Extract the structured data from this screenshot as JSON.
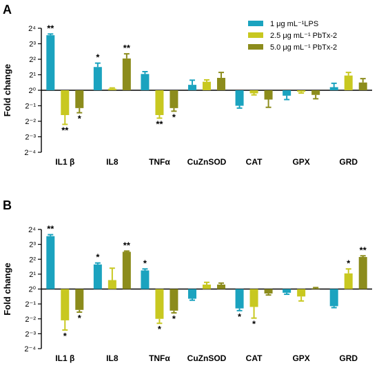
{
  "legend": {
    "items": [
      {
        "label": "1 μg mL⁻¹LPS",
        "color": "#1ba3bf"
      },
      {
        "label": "2.5 μg mL⁻¹ PbTx-2",
        "color": "#c8c820"
      },
      {
        "label": "5.0 μg mL⁻¹ PbTx-2",
        "color": "#8c8c1c"
      }
    ]
  },
  "chart_data": [
    {
      "panel": "A",
      "type": "bar",
      "ylabel": "Fold change",
      "y_scale": "log2",
      "y_ticks": [
        "2⁴",
        "2³",
        "2²",
        "2¹",
        "2⁰",
        "2⁻¹",
        "2⁻²",
        "2⁻³",
        "2⁻⁴"
      ],
      "ylim_log2": [
        -4,
        4
      ],
      "categories": [
        "IL1 β",
        "IL8",
        "TNFα",
        "CuZnSOD",
        "CAT",
        "GPX",
        "GRD"
      ],
      "series": [
        {
          "name": "1 μg mL⁻¹LPS",
          "log2_values": [
            3.55,
            1.5,
            1.05,
            0.35,
            -1.0,
            -0.35,
            0.2
          ],
          "log2_err": [
            0.08,
            0.25,
            0.15,
            0.3,
            0.15,
            0.25,
            0.25
          ],
          "sig": [
            "**",
            "*",
            "",
            "",
            "",
            "",
            ""
          ]
        },
        {
          "name": "2.5 μg mL⁻¹ PbTx-2",
          "log2_values": [
            -1.6,
            0.1,
            -1.6,
            0.55,
            -0.2,
            -0.1,
            0.95
          ],
          "log2_err": [
            0.6,
            0.05,
            0.2,
            0.12,
            0.1,
            0.08,
            0.2
          ],
          "sig": [
            "**",
            "",
            "**",
            "",
            "",
            "",
            ""
          ]
        },
        {
          "name": "5.0 μg mL⁻¹ PbTx-2",
          "log2_values": [
            -1.15,
            2.05,
            -1.15,
            0.8,
            -0.6,
            -0.3,
            0.5
          ],
          "log2_err": [
            0.3,
            0.3,
            0.2,
            0.35,
            0.5,
            0.25,
            0.25
          ],
          "sig": [
            "*",
            "**",
            "*",
            "",
            "",
            "",
            ""
          ]
        }
      ]
    },
    {
      "panel": "B",
      "type": "bar",
      "ylabel": "Fold change",
      "y_scale": "log2",
      "y_ticks": [
        "2⁴",
        "2³",
        "2²",
        "2¹",
        "2⁰",
        "2⁻¹",
        "2⁻²",
        "2⁻³",
        "2⁻⁴"
      ],
      "ylim_log2": [
        -4,
        4
      ],
      "categories": [
        "IL1 β",
        "IL8",
        "TNFα",
        "CuZnSOD",
        "CAT",
        "GPX",
        "GRD"
      ],
      "series": [
        {
          "name": "1 μg mL⁻¹LPS",
          "log2_values": [
            3.55,
            1.65,
            1.25,
            -0.65,
            -1.3,
            -0.25,
            -1.15
          ],
          "log2_err": [
            0.1,
            0.1,
            0.1,
            0.1,
            0.15,
            0.1,
            0.1
          ],
          "sig": [
            "**",
            "*",
            "*",
            "",
            "*",
            "",
            ""
          ]
        },
        {
          "name": "2.5 μg mL⁻¹ PbTx-2",
          "log2_values": [
            -2.1,
            0.6,
            -2.0,
            0.3,
            -1.2,
            -0.5,
            1.05
          ],
          "log2_err": [
            0.65,
            0.8,
            0.3,
            0.15,
            0.75,
            0.3,
            0.3
          ],
          "sig": [
            "*",
            "",
            "*",
            "",
            "*",
            "",
            "*"
          ]
        },
        {
          "name": "5.0 μg mL⁻¹ PbTx-2",
          "log2_values": [
            -1.4,
            2.5,
            -1.45,
            0.3,
            -0.3,
            0.05,
            2.15
          ],
          "log2_err": [
            0.15,
            0.05,
            0.15,
            0.1,
            0.1,
            0.05,
            0.08
          ],
          "sig": [
            "*",
            "**",
            "*",
            "",
            "",
            "",
            "**"
          ]
        }
      ]
    }
  ]
}
